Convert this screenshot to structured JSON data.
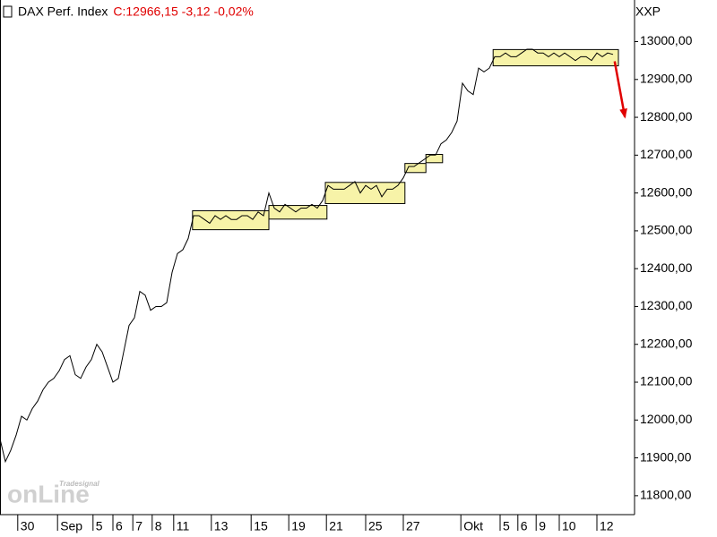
{
  "chart_data": {
    "type": "line",
    "title": "DAX Perf. Index",
    "quote": "C:12966,15 -3,12 -0,02%",
    "quote_color": "#e00000",
    "symbol": "XXP",
    "watermark": "onLine",
    "watermark_brand": "Tradesignal",
    "xlim": [
      0,
      118
    ],
    "ylim": [
      11750,
      13110
    ],
    "grid": false,
    "x": [
      0,
      1,
      2,
      3,
      4,
      5,
      6,
      7,
      8,
      9,
      10,
      11,
      12,
      13,
      14,
      15,
      16,
      17,
      18,
      19,
      20,
      21,
      22,
      23,
      24,
      25,
      26,
      27,
      28,
      29,
      30,
      31,
      32,
      33,
      34,
      35,
      36,
      37,
      38,
      39,
      40,
      41,
      42,
      43,
      44,
      45,
      46,
      47,
      48,
      49,
      50,
      51,
      52,
      53,
      54,
      55,
      56,
      57,
      58,
      59,
      60,
      61,
      62,
      63,
      64,
      65,
      66,
      67,
      68,
      69,
      70,
      71,
      72,
      73,
      74,
      75,
      76,
      77,
      78,
      79,
      80,
      81,
      82,
      83,
      84,
      85,
      86,
      87,
      88,
      89,
      90,
      91,
      92,
      93,
      94,
      95,
      96,
      97,
      98,
      99,
      100,
      101,
      102,
      103,
      104,
      105,
      106,
      107,
      108,
      109,
      110,
      111,
      112,
      113,
      114
    ],
    "series": [
      {
        "name": "DAX Perf. Index",
        "color": "#000000",
        "values": [
          11950,
          11890,
          11920,
          11960,
          12010,
          12000,
          12030,
          12050,
          12080,
          12100,
          12110,
          12130,
          12160,
          12170,
          12120,
          12110,
          12140,
          12160,
          12200,
          12180,
          12140,
          12100,
          12110,
          12180,
          12250,
          12270,
          12340,
          12330,
          12290,
          12300,
          12300,
          12310,
          12390,
          12440,
          12450,
          12480,
          12540,
          12540,
          12530,
          12520,
          12540,
          12530,
          12540,
          12530,
          12530,
          12540,
          12540,
          12530,
          12550,
          12540,
          12600,
          12560,
          12550,
          12570,
          12560,
          12550,
          12560,
          12560,
          12570,
          12560,
          12580,
          12620,
          12610,
          12610,
          12610,
          12620,
          12630,
          12600,
          12620,
          12610,
          12620,
          12590,
          12610,
          12610,
          12620,
          12640,
          12670,
          12670,
          12680,
          12690,
          12700,
          12700,
          12730,
          12740,
          12760,
          12790,
          12890,
          12870,
          12860,
          12930,
          12920,
          12930,
          12960,
          12960,
          12970,
          12960,
          12960,
          12970,
          12980,
          12980,
          12970,
          12970,
          12960,
          12970,
          12960,
          12970,
          12960,
          12950,
          12960,
          12960,
          12950,
          12970,
          12960,
          12970,
          12966.15
        ]
      }
    ],
    "boxes": {
      "color": "#f7f3a8",
      "items": [
        {
          "x": [
            35.8,
            50
          ],
          "y": [
            12503,
            12553
          ]
        },
        {
          "x": [
            50,
            60.8
          ],
          "y": [
            12531,
            12567
          ]
        },
        {
          "x": [
            60.5,
            75.3
          ],
          "y": [
            12572,
            12628
          ]
        },
        {
          "x": [
            75.3,
            79.2
          ],
          "y": [
            12654,
            12678
          ]
        },
        {
          "x": [
            79.2,
            82.3
          ],
          "y": [
            12680,
            12702
          ]
        },
        {
          "x": [
            91.7,
            115
          ],
          "y": [
            12936,
            12979
          ]
        }
      ]
    },
    "arrow": {
      "x": [
        114.3,
        116.2
      ],
      "y": [
        12948,
        12801
      ],
      "color": "#e00000"
    },
    "yticks": [
      {
        "value": 11800,
        "label": "11800,00"
      },
      {
        "value": 11900,
        "label": "11900,00"
      },
      {
        "value": 12000,
        "label": "12000,00"
      },
      {
        "value": 12100,
        "label": "12100,00"
      },
      {
        "value": 12200,
        "label": "12200,00"
      },
      {
        "value": 12300,
        "label": "12300,00"
      },
      {
        "value": 12400,
        "label": "12400,00"
      },
      {
        "value": 12500,
        "label": "12500,00"
      },
      {
        "value": 12600,
        "label": "12600,00"
      },
      {
        "value": 12700,
        "label": "12700,00"
      },
      {
        "value": 12800,
        "label": "12800,00"
      },
      {
        "value": 12900,
        "label": "12900,00"
      },
      {
        "value": 13000,
        "label": "13000,00"
      }
    ],
    "xticks": [
      {
        "value": 3.3,
        "label": "30"
      },
      {
        "value": 10.7,
        "label": "Sep"
      },
      {
        "value": 17.3,
        "label": "5"
      },
      {
        "value": 21,
        "label": "6"
      },
      {
        "value": 24.7,
        "label": "7"
      },
      {
        "value": 28.3,
        "label": "8"
      },
      {
        "value": 32.3,
        "label": "11"
      },
      {
        "value": 39.3,
        "label": "13"
      },
      {
        "value": 46.7,
        "label": "15"
      },
      {
        "value": 53.7,
        "label": "19"
      },
      {
        "value": 60.7,
        "label": "21"
      },
      {
        "value": 68,
        "label": "25"
      },
      {
        "value": 75,
        "label": "27"
      },
      {
        "value": 85.7,
        "label": "Okt"
      },
      {
        "value": 93,
        "label": "5"
      },
      {
        "value": 96.3,
        "label": "6"
      },
      {
        "value": 99.7,
        "label": "9"
      },
      {
        "value": 104,
        "label": "10"
      },
      {
        "value": 111,
        "label": "12"
      }
    ]
  }
}
